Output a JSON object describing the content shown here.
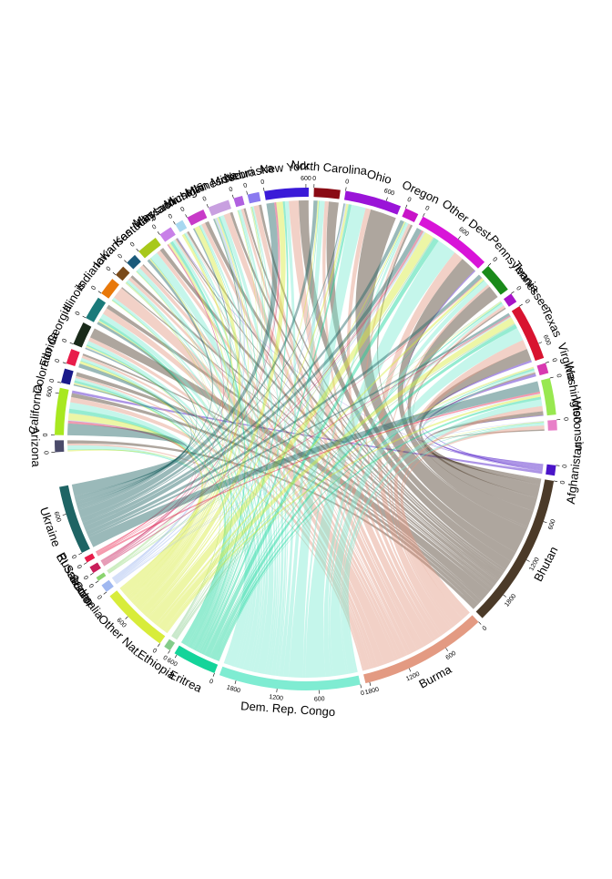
{
  "chart_data": {
    "type": "chord",
    "origins": [
      {
        "name": "Afghanistan",
        "color": "#4a14c8"
      },
      {
        "name": "Bhutan",
        "color": "#4b3a28"
      },
      {
        "name": "Burma",
        "color": "#e39a82"
      },
      {
        "name": "Dem. Rep. Congo",
        "color": "#7fecd2"
      },
      {
        "name": "Eritrea",
        "color": "#14d49a"
      },
      {
        "name": "Ethiopia",
        "color": "#84cc8a"
      },
      {
        "name": "Other Nat.",
        "color": "#d8ec3a"
      },
      {
        "name": "Somalia",
        "color": "#a0b8f0"
      },
      {
        "name": "Sudan",
        "color": "#8ad46e"
      },
      {
        "name": "El Salvador",
        "color": "#c81e5a"
      },
      {
        "name": "Russia",
        "color": "#e81c4a"
      },
      {
        "name": "Ukraine",
        "color": "#1e6464"
      }
    ],
    "destinations": [
      {
        "name": "Arizona",
        "color": "#4a4a6a"
      },
      {
        "name": "California",
        "color": "#a8e820"
      },
      {
        "name": "Colorado",
        "color": "#1a1a8a"
      },
      {
        "name": "Florida",
        "color": "#e81c4a"
      },
      {
        "name": "Georgia",
        "color": "#1a2a1a"
      },
      {
        "name": "Illinois",
        "color": "#1a7a7a"
      },
      {
        "name": "Indiana",
        "color": "#e8780a"
      },
      {
        "name": "Iowa",
        "color": "#7a4a1a"
      },
      {
        "name": "Kansas",
        "color": "#1a5a7a"
      },
      {
        "name": "Kentucky",
        "color": "#a8c81a"
      },
      {
        "name": "Maryland",
        "color": "#c880e8"
      },
      {
        "name": "Massachusetts",
        "color": "#a8d8f0"
      },
      {
        "name": "Michigan",
        "color": "#c83ac8"
      },
      {
        "name": "Minnesota",
        "color": "#c8a0e0"
      },
      {
        "name": "Missouri",
        "color": "#b060e0"
      },
      {
        "name": "Nebraska",
        "color": "#8a7af0"
      },
      {
        "name": "New York",
        "color": "#3a1ad8"
      },
      {
        "name": "North Carolina",
        "color": "#8a0a14"
      },
      {
        "name": "Ohio",
        "color": "#9a14d8"
      },
      {
        "name": "Oregon",
        "color": "#c814c8"
      },
      {
        "name": "Other Dest.",
        "color": "#d814d8"
      },
      {
        "name": "Pennsylvania",
        "color": "#1a8a1a"
      },
      {
        "name": "Tennessee",
        "color": "#a814c8"
      },
      {
        "name": "Texas",
        "color": "#d81430"
      },
      {
        "name": "Virginia",
        "color": "#d83ab0"
      },
      {
        "name": "Washington",
        "color": "#98e850"
      },
      {
        "name": "Wisconsin",
        "color": "#e880c8"
      }
    ],
    "matrix": [
      [
        0,
        40,
        0,
        0,
        0,
        0,
        0,
        0,
        0,
        0,
        10,
        0,
        0,
        0,
        0,
        0,
        0,
        0,
        0,
        0,
        20,
        0,
        0,
        30,
        40,
        10,
        0
      ],
      [
        50,
        60,
        60,
        30,
        150,
        60,
        20,
        40,
        20,
        60,
        20,
        30,
        60,
        40,
        30,
        40,
        150,
        150,
        400,
        30,
        250,
        200,
        20,
        180,
        20,
        60,
        20
      ],
      [
        30,
        80,
        30,
        40,
        60,
        100,
        180,
        50,
        60,
        60,
        20,
        10,
        60,
        100,
        40,
        80,
        150,
        60,
        80,
        40,
        150,
        40,
        40,
        150,
        10,
        80,
        60
      ],
      [
        60,
        100,
        40,
        40,
        60,
        80,
        40,
        40,
        60,
        120,
        40,
        30,
        30,
        60,
        40,
        20,
        60,
        80,
        220,
        40,
        300,
        80,
        40,
        200,
        30,
        100,
        40
      ],
      [
        10,
        60,
        30,
        10,
        20,
        40,
        10,
        10,
        10,
        10,
        40,
        10,
        10,
        20,
        10,
        10,
        30,
        10,
        40,
        10,
        80,
        10,
        20,
        60,
        20,
        40,
        10
      ],
      [
        0,
        10,
        10,
        0,
        0,
        0,
        0,
        0,
        0,
        0,
        10,
        0,
        0,
        10,
        0,
        0,
        0,
        0,
        10,
        0,
        20,
        0,
        0,
        20,
        10,
        0,
        0
      ],
      [
        20,
        100,
        20,
        40,
        20,
        20,
        10,
        10,
        10,
        20,
        30,
        40,
        80,
        20,
        10,
        10,
        100,
        20,
        30,
        20,
        140,
        40,
        10,
        100,
        20,
        40,
        10
      ],
      [
        0,
        10,
        0,
        0,
        10,
        0,
        0,
        0,
        0,
        0,
        0,
        0,
        0,
        30,
        0,
        0,
        0,
        0,
        20,
        0,
        20,
        0,
        0,
        10,
        0,
        10,
        10
      ],
      [
        0,
        0,
        0,
        0,
        0,
        0,
        0,
        10,
        0,
        0,
        0,
        0,
        0,
        10,
        0,
        10,
        0,
        0,
        0,
        0,
        10,
        0,
        10,
        10,
        0,
        0,
        0
      ],
      [
        0,
        20,
        0,
        0,
        0,
        0,
        0,
        0,
        0,
        0,
        20,
        0,
        0,
        0,
        0,
        0,
        20,
        0,
        0,
        0,
        20,
        0,
        0,
        20,
        0,
        0,
        0
      ],
      [
        0,
        20,
        0,
        0,
        0,
        0,
        0,
        0,
        0,
        0,
        0,
        0,
        0,
        0,
        0,
        0,
        10,
        0,
        0,
        0,
        10,
        10,
        0,
        0,
        0,
        30,
        0
      ],
      [
        0,
        180,
        20,
        60,
        20,
        40,
        0,
        0,
        0,
        40,
        0,
        0,
        20,
        20,
        0,
        0,
        120,
        60,
        20,
        60,
        80,
        60,
        0,
        40,
        0,
        160,
        0
      ]
    ],
    "ticks": [
      0,
      600,
      1200,
      1800
    ]
  }
}
